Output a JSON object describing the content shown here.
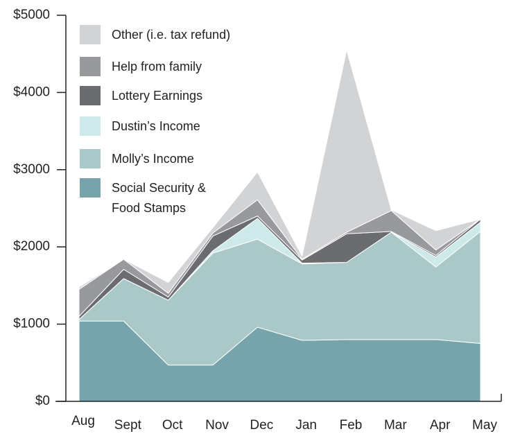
{
  "chart_data": {
    "type": "stacked-area",
    "categories": [
      "Aug",
      "Sept",
      "Oct",
      "Nov",
      "Dec",
      "Jan",
      "Feb",
      "Mar",
      "Apr",
      "May"
    ],
    "series": [
      {
        "name": "Social Security & Food Stamps",
        "color": "#76a4aa",
        "values": [
          1040,
          1040,
          470,
          470,
          960,
          790,
          800,
          800,
          800,
          750
        ]
      },
      {
        "name": "Molly’s Income",
        "color": "#aac8c8",
        "values": [
          20,
          550,
          840,
          1450,
          1140,
          990,
          1000,
          1390,
          940,
          1450
        ]
      },
      {
        "name": "Dustin’s Income",
        "color": "#cde9ea",
        "values": [
          0,
          0,
          0,
          30,
          270,
          10,
          0,
          0,
          130,
          120
        ]
      },
      {
        "name": "Lottery Earnings",
        "color": "#6b6c70",
        "values": [
          40,
          120,
          40,
          190,
          30,
          40,
          370,
          10,
          20,
          40
        ]
      },
      {
        "name": "Help from family",
        "color": "#98999c",
        "values": [
          350,
          130,
          50,
          40,
          210,
          10,
          20,
          270,
          70,
          0
        ]
      },
      {
        "name": "Other (i.e. tax refund)",
        "color": "#d2d3d5",
        "values": [
          30,
          0,
          140,
          70,
          360,
          40,
          2360,
          10,
          250,
          0
        ]
      }
    ],
    "ylim": [
      0,
      5000
    ],
    "yticks": [
      {
        "value": 0,
        "label": "$0"
      },
      {
        "value": 1000,
        "label": "$1000"
      },
      {
        "value": 2000,
        "label": "$2000"
      },
      {
        "value": 3000,
        "label": "$3000"
      },
      {
        "value": 4000,
        "label": "$4000"
      },
      {
        "value": 5000,
        "label": "$5000"
      }
    ],
    "legend": "upper left"
  }
}
